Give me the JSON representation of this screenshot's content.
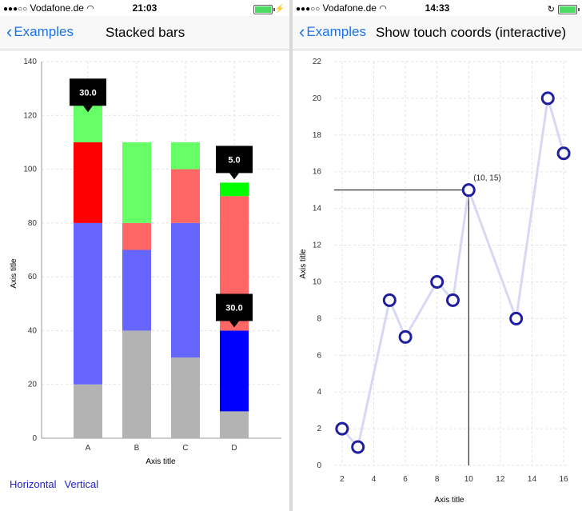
{
  "left": {
    "status": {
      "carrier": "Vodafone.de",
      "time": "21:03",
      "signal": "●●●○○"
    },
    "nav": {
      "back_label": "Examples",
      "title": "Stacked bars"
    },
    "bottom_links": [
      "Horizontal",
      "Vertical"
    ],
    "chart_data": {
      "type": "bar",
      "stacked": true,
      "categories": [
        "A",
        "B",
        "C",
        "D"
      ],
      "series": [
        {
          "values": [
            20,
            40,
            30,
            10
          ]
        },
        {
          "values": [
            60,
            30,
            50,
            30
          ]
        },
        {
          "values": [
            30,
            10,
            20,
            50
          ]
        },
        {
          "values": [
            20,
            30,
            10,
            5
          ]
        }
      ],
      "series_colors": [
        [
          "#b3b3b3",
          "#b3b3b3",
          "#b3b3b3",
          "#b3b3b3"
        ],
        [
          "#6666ff",
          "#6666ff",
          "#6666ff",
          "#0000ff"
        ],
        [
          "#ff0000",
          "#ff6666",
          "#ff6666",
          "#ff6666"
        ],
        [
          "#66ff66",
          "#66ff66",
          "#66ff66",
          "#00ff00"
        ]
      ],
      "ylim": [
        0,
        140
      ],
      "yticks": [
        0,
        20,
        40,
        60,
        80,
        100,
        120,
        140
      ],
      "xlabel": "Axis title",
      "ylabel": "Axis title",
      "grid": true,
      "tooltips": [
        {
          "category": "A",
          "value_label": "30.0",
          "at_value": 120
        },
        {
          "category": "D",
          "value_label": "5.0",
          "at_value": 95
        },
        {
          "category": "D",
          "value_label": "30.0",
          "at_value": 40
        }
      ]
    }
  },
  "right": {
    "status": {
      "carrier": "Vodafone.de",
      "time": "14:33",
      "signal": "●●●○○"
    },
    "nav": {
      "back_label": "Examples",
      "title": "Show touch coords (interactive)"
    },
    "chart_data": {
      "type": "line",
      "x": [
        2,
        3,
        5,
        6,
        8,
        9,
        10,
        13,
        15,
        16
      ],
      "y": [
        2,
        1,
        9,
        7,
        10,
        9,
        15,
        8,
        20,
        17
      ],
      "xlim": [
        1.5,
        16.3
      ],
      "ylim": [
        0,
        22
      ],
      "xticks": [
        2,
        4,
        6,
        8,
        10,
        12,
        14,
        16
      ],
      "yticks": [
        0,
        2,
        4,
        6,
        8,
        10,
        12,
        14,
        16,
        18,
        20,
        22
      ],
      "xlabel": "Axis title",
      "ylabel": "Axis title",
      "grid": true,
      "line_color": "#d8d8f4",
      "marker_color": "#1e1ea0",
      "touch": {
        "x": 10,
        "y": 15,
        "label": "(10, 15)"
      }
    }
  }
}
